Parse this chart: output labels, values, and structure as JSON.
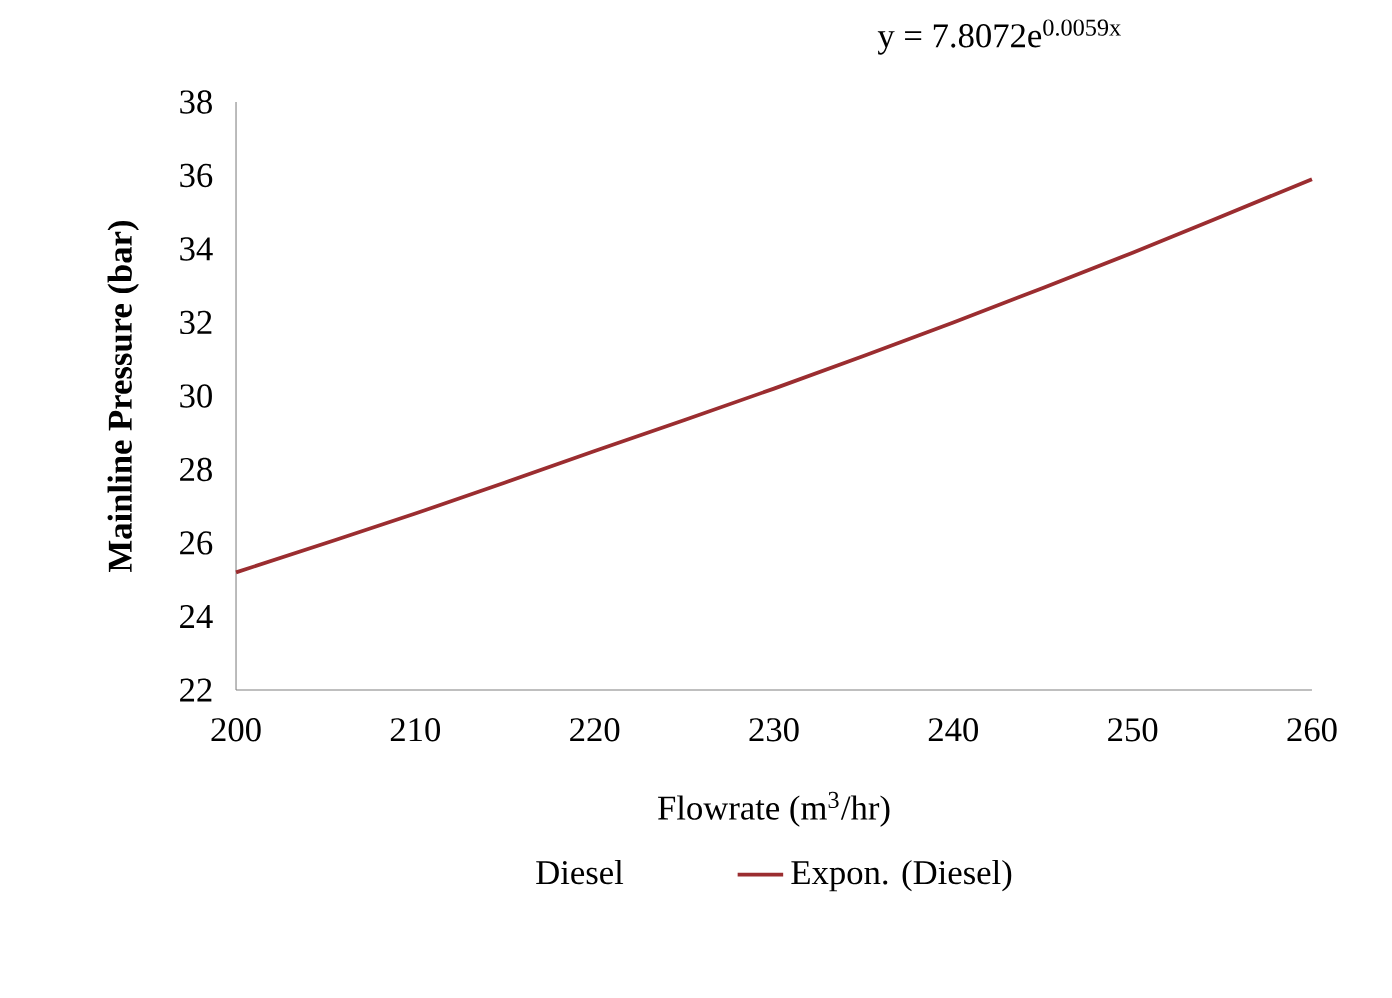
{
  "chart_data": {
    "type": "line",
    "xlabel": "Flowrate (m$^{3}$/hr)",
    "ylabel": "Mainline Pressure (bar)",
    "annotations": [
      "y = 7.8072e$^{0.0059x}$"
    ],
    "x": [
      200,
      210,
      220,
      230,
      240,
      250,
      260
    ],
    "series": [
      {
        "name": "Diesel",
        "type": "scatter",
        "marker": "none",
        "values": [
          null,
          null,
          null,
          null,
          null,
          null,
          null
        ]
      },
      {
        "name": "Expon. (Diesel)",
        "color": "#9b2d30",
        "values": [
          25.2,
          26.8,
          28.5,
          30.2,
          32.0,
          33.9,
          35.9
        ]
      }
    ],
    "xlim": [
      200,
      260
    ],
    "xticks": [
      200,
      210,
      220,
      230,
      240,
      250,
      260
    ],
    "ylim": [
      22,
      38
    ],
    "yticks": [
      22,
      24,
      26,
      28,
      30,
      32,
      34,
      36,
      38
    ],
    "grid": false,
    "legend": "bottom",
    "marker": "none",
    "line_style": "solid"
  }
}
